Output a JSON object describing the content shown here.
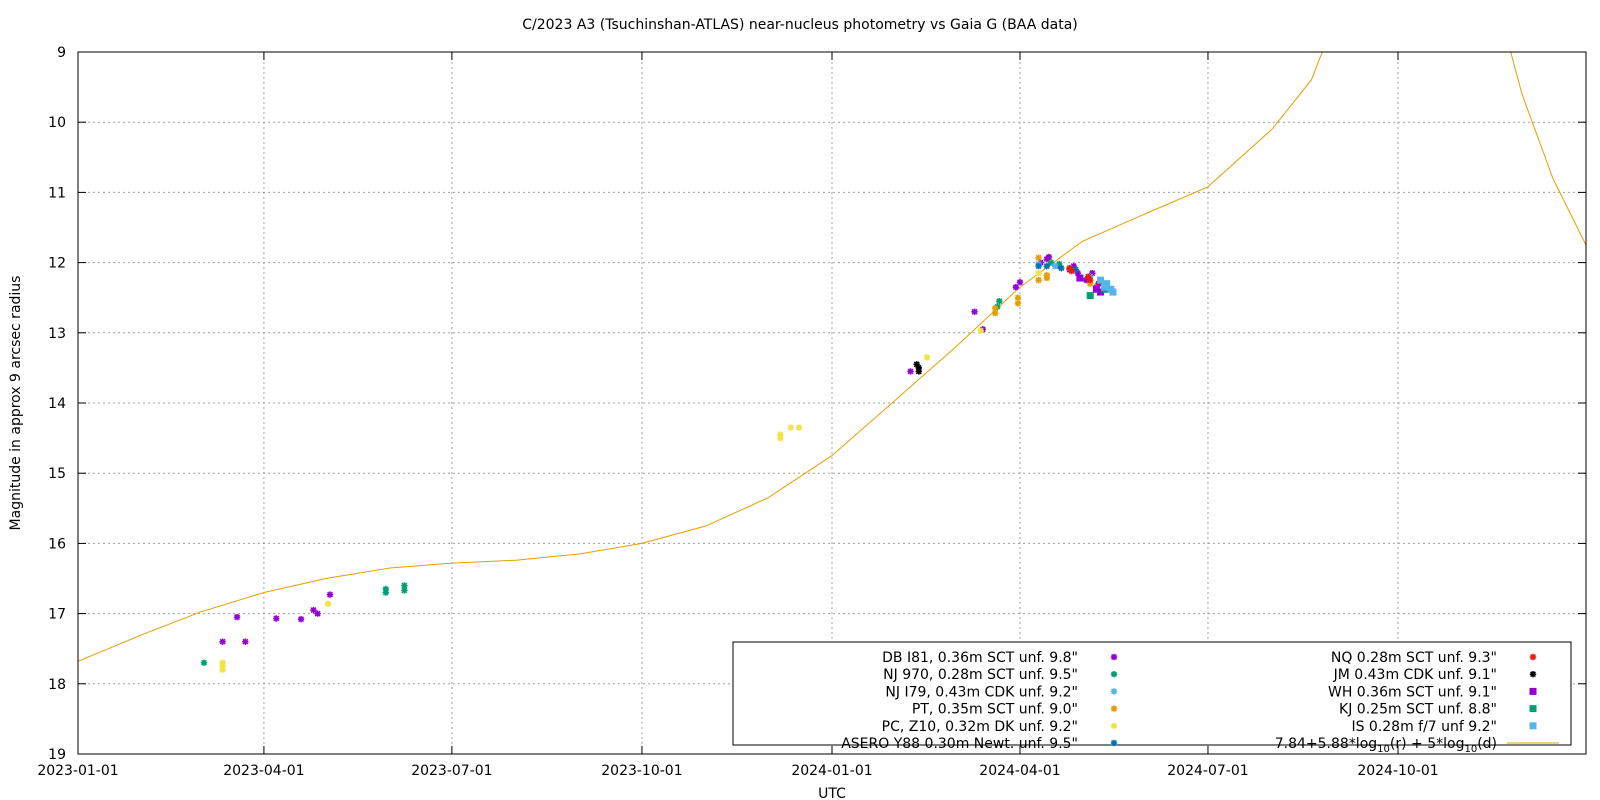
{
  "chart_data": {
    "type": "scatter",
    "title": "C/2023 A3 (Tsuchinshan-ATLAS) near-nucleus photometry vs Gaia G (BAA data)",
    "xlabel": "UTC",
    "ylabel": "Magnitude in approx 9 arcsec radius",
    "xlim": [
      "2023-01-01",
      "2024-12-31"
    ],
    "ylim": [
      19,
      9
    ],
    "y_inverted": true,
    "grid": true,
    "legend_position": "bottom-right",
    "x_ticks": [
      "2023-01-01",
      "2023-04-01",
      "2023-07-01",
      "2023-10-01",
      "2024-01-01",
      "2024-04-01",
      "2024-07-01",
      "2024-10-01"
    ],
    "y_ticks": [
      9,
      10,
      11,
      12,
      13,
      14,
      15,
      16,
      17,
      18,
      19
    ],
    "series": [
      {
        "name": "DB I81, 0.36m SCT unf. 9.8\"",
        "marker": "star",
        "color": "#9400d3",
        "points": [
          [
            "2023-03-12",
            17.4
          ],
          [
            "2023-03-19",
            17.05
          ],
          [
            "2023-03-23",
            17.4
          ],
          [
            "2023-04-07",
            17.07
          ],
          [
            "2023-04-19",
            17.08
          ],
          [
            "2023-04-25",
            16.95
          ],
          [
            "2023-04-27",
            17.0
          ],
          [
            "2023-05-03",
            16.73
          ],
          [
            "2024-02-08",
            13.55
          ],
          [
            "2024-03-10",
            12.7
          ],
          [
            "2024-03-14",
            12.95
          ],
          [
            "2024-03-30",
            12.35
          ],
          [
            "2024-04-01",
            12.28
          ],
          [
            "2024-04-11",
            12.0
          ],
          [
            "2024-04-14",
            11.95
          ],
          [
            "2024-04-15",
            11.92
          ],
          [
            "2024-04-20",
            12.05
          ],
          [
            "2024-04-25",
            12.1
          ],
          [
            "2024-04-27",
            12.05
          ],
          [
            "2024-04-29",
            12.15
          ],
          [
            "2024-05-03",
            12.25
          ],
          [
            "2024-05-06",
            12.15
          ],
          [
            "2024-05-09",
            12.3
          ]
        ]
      },
      {
        "name": "NJ 970, 0.28m SCT unf. 9.5\"",
        "marker": "star",
        "color": "#009e73",
        "points": [
          [
            "2023-03-03",
            17.7
          ],
          [
            "2023-05-30",
            16.65
          ],
          [
            "2023-05-30",
            16.7
          ],
          [
            "2023-06-08",
            16.6
          ],
          [
            "2023-06-08",
            16.67
          ],
          [
            "2024-03-21",
            12.63
          ],
          [
            "2024-03-22",
            12.55
          ],
          [
            "2024-04-16",
            12.0
          ],
          [
            "2024-04-20",
            12.02
          ]
        ]
      },
      {
        "name": "NJ I79, 0.43m CDK unf. 9.2\"",
        "marker": "star",
        "color": "#56b4e9",
        "points": [
          [
            "2024-04-10",
            12.02
          ],
          [
            "2024-04-18",
            12.05
          ],
          [
            "2024-04-25",
            12.08
          ],
          [
            "2024-05-05",
            12.2
          ]
        ]
      },
      {
        "name": "PT, 0.35m SCT unf. 9.0\"",
        "marker": "star",
        "color": "#e69f00",
        "points": [
          [
            "2024-03-20",
            12.65
          ],
          [
            "2024-03-20",
            12.72
          ],
          [
            "2024-03-31",
            12.5
          ],
          [
            "2024-03-31",
            12.58
          ],
          [
            "2024-04-10",
            11.93
          ],
          [
            "2024-04-10",
            12.25
          ],
          [
            "2024-04-14",
            12.18
          ],
          [
            "2024-04-14",
            12.22
          ],
          [
            "2024-05-05",
            12.3
          ]
        ]
      },
      {
        "name": "PC, Z10, 0.32m DK unf. 9.2\"",
        "marker": "star",
        "color": "#f0e442",
        "points": [
          [
            "2023-03-12",
            17.7
          ],
          [
            "2023-03-12",
            17.75
          ],
          [
            "2023-03-12",
            17.8
          ],
          [
            "2023-05-02",
            16.86
          ],
          [
            "2023-12-07",
            14.45
          ],
          [
            "2023-12-07",
            14.5
          ],
          [
            "2023-12-12",
            14.35
          ],
          [
            "2023-12-16",
            14.35
          ],
          [
            "2024-02-16",
            13.35
          ],
          [
            "2024-03-13",
            12.97
          ],
          [
            "2024-04-10",
            12.15
          ]
        ]
      },
      {
        "name": "ASERO Y88 0.30m Newt. unf. 9.5\"",
        "marker": "star",
        "color": "#0072b2",
        "points": [
          [
            "2024-04-10",
            12.05
          ],
          [
            "2024-04-14",
            12.05
          ],
          [
            "2024-04-21",
            12.08
          ],
          [
            "2024-04-28",
            12.1
          ]
        ]
      },
      {
        "name": "NQ 0.28m SCT unf. 9.3\"",
        "marker": "star",
        "color": "#e51e10",
        "points": [
          [
            "2024-04-25",
            12.08
          ],
          [
            "2024-04-26",
            12.12
          ],
          [
            "2024-05-04",
            12.2
          ],
          [
            "2024-05-05",
            12.25
          ],
          [
            "2024-05-08",
            12.35
          ]
        ]
      },
      {
        "name": "JM 0.43m CDK unf. 9.1\"",
        "marker": "star",
        "color": "#000000",
        "points": [
          [
            "2024-02-11",
            13.45
          ],
          [
            "2024-02-12",
            13.5
          ],
          [
            "2024-02-12",
            13.55
          ]
        ]
      },
      {
        "name": "WH 0.36m SCT  unf. 9.1\"",
        "marker": "square",
        "color": "#9400d3",
        "points": [
          [
            "2024-04-30",
            12.22
          ],
          [
            "2024-05-08",
            12.38
          ],
          [
            "2024-05-10",
            12.42
          ]
        ]
      },
      {
        "name": "KJ 0.25m SCT  unf. 8.8\"",
        "marker": "square",
        "color": "#009e73",
        "points": [
          [
            "2024-05-05",
            12.47
          ],
          [
            "2024-05-12",
            12.38
          ]
        ]
      },
      {
        "name": "IS 0.28m f/7 unf 9.2\"",
        "marker": "square",
        "color": "#56b4e9",
        "points": [
          [
            "2024-05-10",
            12.25
          ],
          [
            "2024-05-12",
            12.35
          ],
          [
            "2024-05-13",
            12.3
          ],
          [
            "2024-05-15",
            12.38
          ],
          [
            "2024-05-16",
            12.42
          ]
        ]
      },
      {
        "name": "7.84+5.88*log10(r) + 5*log10(d)",
        "marker": "line",
        "color": "#e69f00",
        "points": [
          [
            "2023-01-01",
            17.68
          ],
          [
            "2023-02-01",
            17.3
          ],
          [
            "2023-03-01",
            16.98
          ],
          [
            "2023-04-01",
            16.7
          ],
          [
            "2023-05-01",
            16.5
          ],
          [
            "2023-06-01",
            16.35
          ],
          [
            "2023-07-01",
            16.28
          ],
          [
            "2023-08-01",
            16.24
          ],
          [
            "2023-09-01",
            16.15
          ],
          [
            "2023-10-01",
            16.0
          ],
          [
            "2023-11-01",
            15.75
          ],
          [
            "2023-12-01",
            15.35
          ],
          [
            "2024-01-01",
            14.75
          ],
          [
            "2024-02-01",
            13.95
          ],
          [
            "2024-03-01",
            13.2
          ],
          [
            "2024-04-01",
            12.35
          ],
          [
            "2024-05-01",
            11.7
          ],
          [
            "2024-06-01",
            11.3
          ],
          [
            "2024-07-01",
            10.92
          ],
          [
            "2024-08-01",
            10.1
          ],
          [
            "2024-08-20",
            9.4
          ],
          [
            "2024-09-01",
            8.5
          ],
          [
            "2024-11-20",
            8.5
          ],
          [
            "2024-11-30",
            9.6
          ],
          [
            "2024-12-15",
            10.8
          ],
          [
            "2024-12-31",
            11.75
          ]
        ]
      }
    ]
  },
  "legend_fit_label": {
    "prefix": "7.84+5.88*log",
    "sub1": "10",
    "mid": "(r) + 5*log",
    "sub2": "10",
    "suffix": "(d)"
  }
}
